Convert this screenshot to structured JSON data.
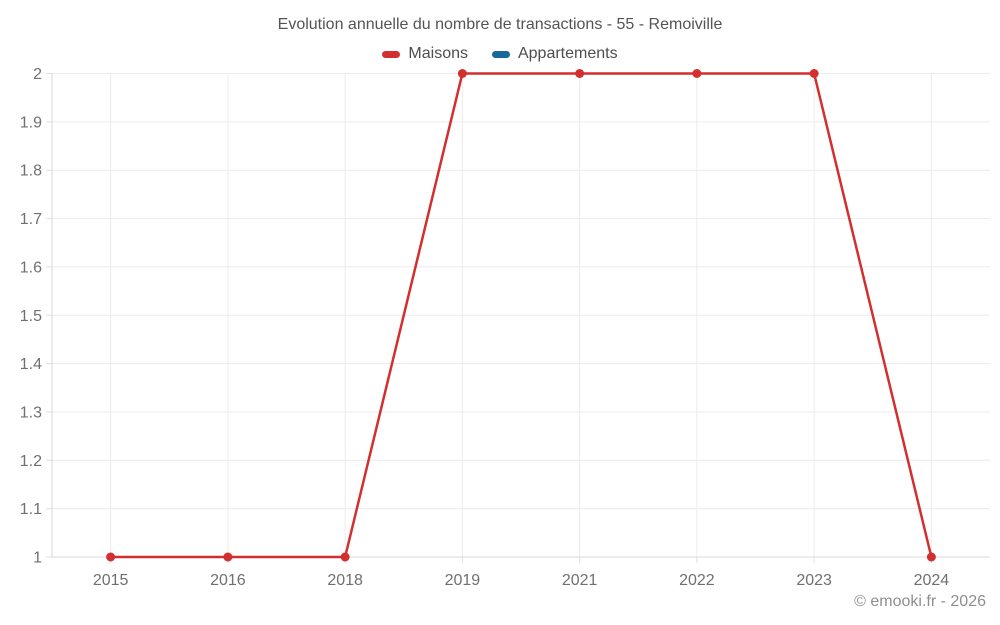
{
  "chart_data": {
    "type": "line",
    "title": "Evolution annuelle du nombre de transactions - 55 - Remoiville",
    "categories": [
      "2015",
      "2016",
      "2018",
      "2019",
      "2021",
      "2022",
      "2023",
      "2024"
    ],
    "series": [
      {
        "name": "Maisons",
        "color": "#d32f2f",
        "values": [
          1,
          1,
          1,
          2,
          2,
          2,
          2,
          1
        ]
      },
      {
        "name": "Appartements",
        "color": "#17699c",
        "values": []
      }
    ],
    "ylim": [
      1,
      2
    ],
    "yticks": [
      "1",
      "1.1",
      "1.2",
      "1.3",
      "1.4",
      "1.5",
      "1.6",
      "1.7",
      "1.8",
      "1.9",
      "2"
    ],
    "grid": true,
    "legend_position": "top",
    "point_radius": 4.5
  },
  "footer": {
    "copyright": "© emooki.fr - 2026"
  }
}
